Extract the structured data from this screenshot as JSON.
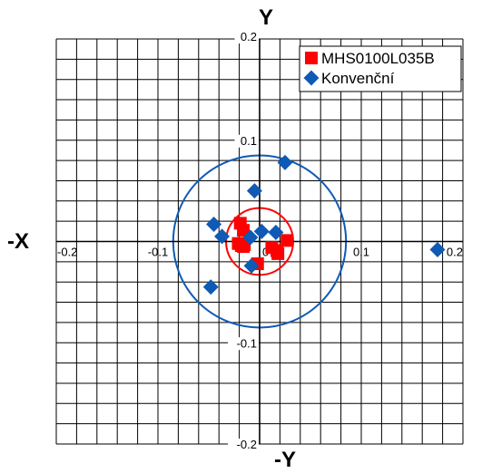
{
  "chart_data": {
    "type": "scatter",
    "axis_labels": {
      "top": "Y",
      "bottom": "-Y",
      "left": "-X",
      "right": ""
    },
    "xlim": [
      -0.2,
      0.2
    ],
    "ylim": [
      -0.2,
      0.2
    ],
    "grid_step": 0.02,
    "grid": true,
    "x_ticks": [
      {
        "value": -0.2,
        "label": "-0.2"
      },
      {
        "value": -0.1,
        "label": "-0.1"
      },
      {
        "value": 0,
        "label": "0"
      },
      {
        "value": 0.1,
        "label": "0.1"
      },
      {
        "value": 0.2,
        "label": "0.2"
      }
    ],
    "y_ticks": [
      {
        "value": 0.2,
        "label": "0.2"
      },
      {
        "value": 0.1,
        "label": "0.1"
      },
      {
        "value": -0.1,
        "label": "-0.1"
      },
      {
        "value": -0.2,
        "label": "-0.2"
      }
    ],
    "legend_position": "top-right",
    "series": [
      {
        "name": "MHS0100L035B",
        "marker": "square",
        "color": "#ff0000",
        "circle_radius": 0.033,
        "circle_color": "#ff0000",
        "points": [
          {
            "x": -0.019,
            "y": 0.018
          },
          {
            "x": -0.016,
            "y": 0.011
          },
          {
            "x": -0.021,
            "y": -0.002
          },
          {
            "x": -0.018,
            "y": -0.004
          },
          {
            "x": -0.015,
            "y": -0.003
          },
          {
            "x": -0.016,
            "y": -0.005
          },
          {
            "x": -0.002,
            "y": -0.022
          },
          {
            "x": 0.012,
            "y": -0.006
          },
          {
            "x": 0.017,
            "y": -0.009
          },
          {
            "x": 0.018,
            "y": -0.012
          },
          {
            "x": 0.027,
            "y": 0.001
          }
        ]
      },
      {
        "name": "Konvenční",
        "marker": "diamond",
        "color": "#0f5ab4",
        "circle_radius": 0.085,
        "circle_color": "#0f5ab4",
        "points": [
          {
            "x": -0.045,
            "y": 0.017
          },
          {
            "x": -0.037,
            "y": 0.005
          },
          {
            "x": -0.048,
            "y": -0.045
          },
          {
            "x": -0.009,
            "y": 0.004
          },
          {
            "x": -0.008,
            "y": -0.024
          },
          {
            "x": -0.005,
            "y": 0.05
          },
          {
            "x": 0.002,
            "y": 0.01
          },
          {
            "x": 0.016,
            "y": 0.009
          },
          {
            "x": 0.025,
            "y": 0.078
          },
          {
            "x": 0.175,
            "y": -0.008
          }
        ]
      }
    ]
  }
}
